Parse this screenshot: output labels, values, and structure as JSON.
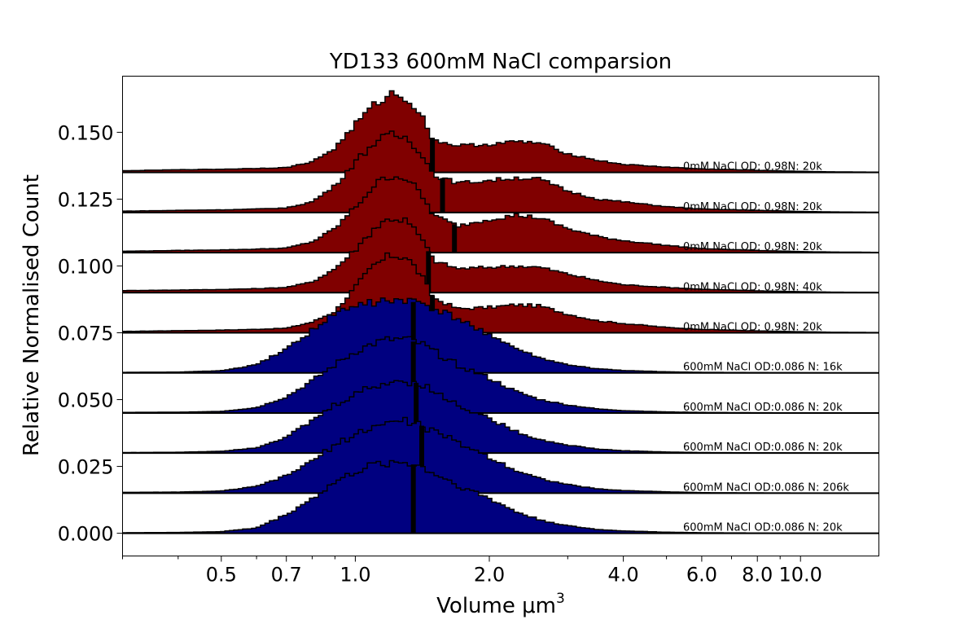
{
  "chart_data": {
    "type": "area",
    "title": "YD133 600mM NaCl comparsion",
    "xlabel": "Volume μm",
    "xlabel_superscript": "3",
    "ylabel": "Relative Normalised Count",
    "xscale": "log",
    "xlim": [
      0.3,
      15.0
    ],
    "ylim": [
      -0.0085,
      0.171
    ],
    "xticks": [
      0.5,
      0.7,
      1.0,
      2.0,
      4.0,
      6.0,
      8.0,
      10.0
    ],
    "xtick_labels": [
      "0.5",
      "0.7",
      "1.0",
      "2.0",
      "4.0",
      "6.0",
      "8.0",
      "10.0"
    ],
    "yticks": [
      0.0,
      0.025,
      0.05,
      0.075,
      0.1,
      0.125,
      0.15
    ],
    "ytick_labels": [
      "0.000",
      "0.025",
      "0.050",
      "0.075",
      "0.100",
      "0.125",
      "0.150"
    ],
    "grid": false,
    "x_shape": [
      0.3,
      0.4,
      0.5,
      0.6,
      0.7,
      0.8,
      0.9,
      1.0,
      1.1,
      1.2,
      1.3,
      1.4,
      1.5,
      1.7,
      2.0,
      2.3,
      2.6,
      3.0,
      3.5,
      4.0,
      5.0,
      6.0,
      8.0,
      10.0,
      12.0,
      15.0
    ],
    "series": [
      {
        "name": "0mM NaCl OD: 0.98N: 20k",
        "color": "#800000",
        "baseline": 0.075,
        "median": 1.49,
        "heights": [
          0.0005,
          0.0008,
          0.001,
          0.0013,
          0.0017,
          0.004,
          0.008,
          0.017,
          0.025,
          0.029,
          0.0285,
          0.022,
          0.013,
          0.009,
          0.0095,
          0.0105,
          0.01,
          0.007,
          0.0045,
          0.0035,
          0.002,
          0.0013,
          0.0007,
          0.0004,
          0.0002,
          0.0001
        ]
      },
      {
        "name": "0mM NaCl OD: 0.98N: 40k",
        "color": "#800000",
        "baseline": 0.09,
        "median": 1.46,
        "heights": [
          0.0008,
          0.001,
          0.0012,
          0.0015,
          0.002,
          0.004,
          0.009,
          0.016,
          0.024,
          0.028,
          0.027,
          0.021,
          0.012,
          0.009,
          0.0095,
          0.01,
          0.0095,
          0.007,
          0.0045,
          0.003,
          0.002,
          0.0013,
          0.0007,
          0.0004,
          0.0002,
          0.0001
        ]
      },
      {
        "name": "0mM NaCl OD: 0.98N: 20k",
        "color": "#800000",
        "baseline": 0.105,
        "median": 1.67,
        "heights": [
          0.0005,
          0.0008,
          0.001,
          0.0013,
          0.0017,
          0.004,
          0.009,
          0.017,
          0.025,
          0.029,
          0.028,
          0.022,
          0.014,
          0.01,
          0.0125,
          0.014,
          0.013,
          0.009,
          0.006,
          0.0045,
          0.0027,
          0.0015,
          0.0008,
          0.0004,
          0.0002,
          0.0001
        ]
      },
      {
        "name": "0mM NaCl OD: 0.98N: 20k",
        "color": "#800000",
        "baseline": 0.12,
        "median": 1.57,
        "heights": [
          0.0005,
          0.0008,
          0.001,
          0.0013,
          0.0017,
          0.004,
          0.01,
          0.019,
          0.026,
          0.029,
          0.028,
          0.023,
          0.014,
          0.011,
          0.012,
          0.013,
          0.0125,
          0.008,
          0.005,
          0.004,
          0.0022,
          0.0013,
          0.0008,
          0.0004,
          0.0002,
          0.0001
        ]
      },
      {
        "name": "0mM NaCl OD: 0.98N: 20k",
        "color": "#800000",
        "baseline": 0.135,
        "median": 1.49,
        "heights": [
          0.0006,
          0.001,
          0.0012,
          0.0015,
          0.0018,
          0.004,
          0.009,
          0.018,
          0.025,
          0.0295,
          0.028,
          0.022,
          0.012,
          0.01,
          0.0105,
          0.0115,
          0.011,
          0.007,
          0.0045,
          0.003,
          0.002,
          0.0013,
          0.0008,
          0.0004,
          0.0002,
          0.0001
        ]
      },
      {
        "name": "600mM NaCl OD:0.086 N: 20k",
        "color": "#000080",
        "baseline": 0.0,
        "median": 1.35,
        "heights": [
          0.0002,
          0.0003,
          0.0006,
          0.002,
          0.007,
          0.013,
          0.019,
          0.023,
          0.0255,
          0.0265,
          0.0265,
          0.025,
          0.0225,
          0.018,
          0.013,
          0.008,
          0.005,
          0.0028,
          0.0014,
          0.0009,
          0.0004,
          0.0002,
          0.0001,
          5e-05,
          0.0,
          0.0
        ]
      },
      {
        "name": "600mM NaCl OD:0.086 N: 206k",
        "color": "#000080",
        "baseline": 0.015,
        "median": 1.41,
        "heights": [
          0.0003,
          0.0004,
          0.0008,
          0.0025,
          0.0065,
          0.012,
          0.018,
          0.022,
          0.025,
          0.0265,
          0.027,
          0.0255,
          0.023,
          0.019,
          0.0135,
          0.0085,
          0.0055,
          0.0032,
          0.0016,
          0.001,
          0.0005,
          0.0002,
          0.0001,
          5e-05,
          0.0,
          0.0
        ]
      },
      {
        "name": "600mM NaCl OD:0.086 N: 20k",
        "color": "#000080",
        "baseline": 0.03,
        "median": 1.37,
        "heights": [
          0.0002,
          0.0003,
          0.0007,
          0.002,
          0.006,
          0.012,
          0.018,
          0.022,
          0.025,
          0.0265,
          0.027,
          0.026,
          0.023,
          0.018,
          0.013,
          0.008,
          0.005,
          0.003,
          0.0015,
          0.0009,
          0.0004,
          0.0002,
          0.0001,
          5e-05,
          0.0,
          0.0
        ]
      },
      {
        "name": "600mM NaCl OD:0.086 N: 20k",
        "color": "#000080",
        "baseline": 0.045,
        "median": 1.35,
        "heights": [
          0.0002,
          0.0003,
          0.0006,
          0.002,
          0.006,
          0.012,
          0.018,
          0.023,
          0.026,
          0.0275,
          0.0275,
          0.026,
          0.023,
          0.018,
          0.013,
          0.008,
          0.005,
          0.003,
          0.0015,
          0.0009,
          0.0004,
          0.0002,
          0.0001,
          5e-05,
          0.0,
          0.0
        ]
      },
      {
        "name": "600mM NaCl OD:0.086 N: 16k",
        "color": "#000080",
        "baseline": 0.06,
        "median": 1.35,
        "heights": [
          0.0002,
          0.0003,
          0.0008,
          0.003,
          0.009,
          0.016,
          0.022,
          0.025,
          0.0265,
          0.027,
          0.027,
          0.026,
          0.024,
          0.02,
          0.0145,
          0.009,
          0.0055,
          0.003,
          0.0015,
          0.0009,
          0.0004,
          0.0002,
          0.0001,
          5e-05,
          0.0,
          0.0
        ]
      }
    ]
  }
}
